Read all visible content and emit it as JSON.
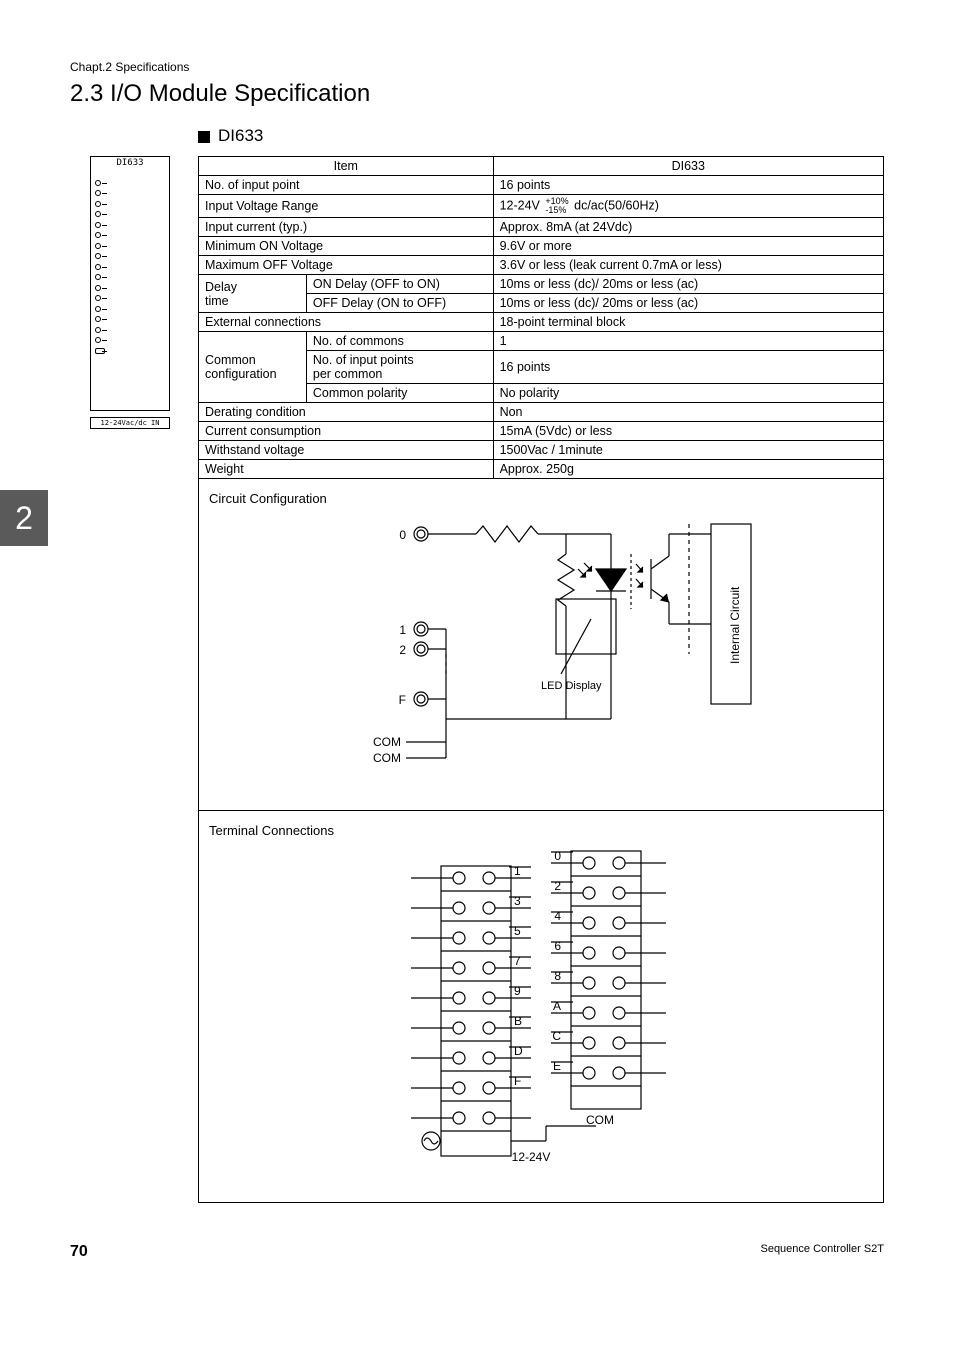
{
  "chapter_header": "Chapt.2   Specifications",
  "section_title": "2.3   I/O Module Specification",
  "module_name": "DI633",
  "module_image_label": "DI633",
  "module_image_footer": "12-24Vac/dc IN",
  "table": {
    "header_item": "Item",
    "header_model": "DI633",
    "rows": [
      {
        "k": "No. of input point",
        "sub": null,
        "v": "16 points"
      },
      {
        "k": "Input Voltage Range",
        "sub": null,
        "v": "<VOLTAGE>"
      },
      {
        "k": "Input current (typ.)",
        "sub": null,
        "v": "Approx. 8mA (at 24Vdc)"
      },
      {
        "k": "Minimum ON Voltage",
        "sub": null,
        "v": "9.6V or more"
      },
      {
        "k": "Maximum OFF Voltage",
        "sub": null,
        "v": "3.6V or less (leak current 0.7mA or less)"
      }
    ],
    "voltage_range": {
      "base": "12-24V",
      "top": "+10%",
      "bot": "-15%",
      "rest": "dc/ac(50/60Hz)"
    },
    "delay_group": {
      "group_label": "Delay\ntime",
      "r1": {
        "sub": "ON Delay (OFF to ON)",
        "v": "10ms or less (dc)/ 20ms or less (ac)"
      },
      "r2": {
        "sub": "OFF Delay (ON to OFF)",
        "v": "10ms or less (dc)/ 20ms or less (ac)"
      }
    },
    "ext_conn": {
      "k": "External connections",
      "v": "18-point terminal block"
    },
    "common_group": {
      "group_label": "Common\nconfiguration",
      "r1": {
        "sub": "No. of commons",
        "v": "1"
      },
      "r2": {
        "sub": "No. of input points\nper common",
        "v": "16 points"
      },
      "r3": {
        "sub": "Common polarity",
        "v": "No polarity"
      }
    },
    "rest": [
      {
        "k": "Derating condition",
        "v": "Non"
      },
      {
        "k": "Current consumption",
        "v": "15mA (5Vdc) or less"
      },
      {
        "k": "Withstand voltage",
        "v": "1500Vac / 1minute"
      },
      {
        "k": "Weight",
        "v": "Approx. 250g"
      }
    ]
  },
  "circuit_title": "Circuit Configuration",
  "circuit_labels": {
    "in0": "0",
    "in1": "1",
    "in2": "2",
    "inF": "F",
    "com": "COM",
    "led": "LED Display",
    "internal": "Internal Circuit"
  },
  "terminal_title": "Terminal Connections",
  "terminal_labels": {
    "left": [
      "1",
      "3",
      "5",
      "7",
      "9",
      "B",
      "D",
      "F"
    ],
    "right": [
      "0",
      "2",
      "4",
      "6",
      "8",
      "A",
      "C",
      "E"
    ],
    "com": "COM",
    "volt": "12-24V"
  },
  "section_tab": "2",
  "page_number": "70",
  "footer_text": "Sequence Controller S2T"
}
